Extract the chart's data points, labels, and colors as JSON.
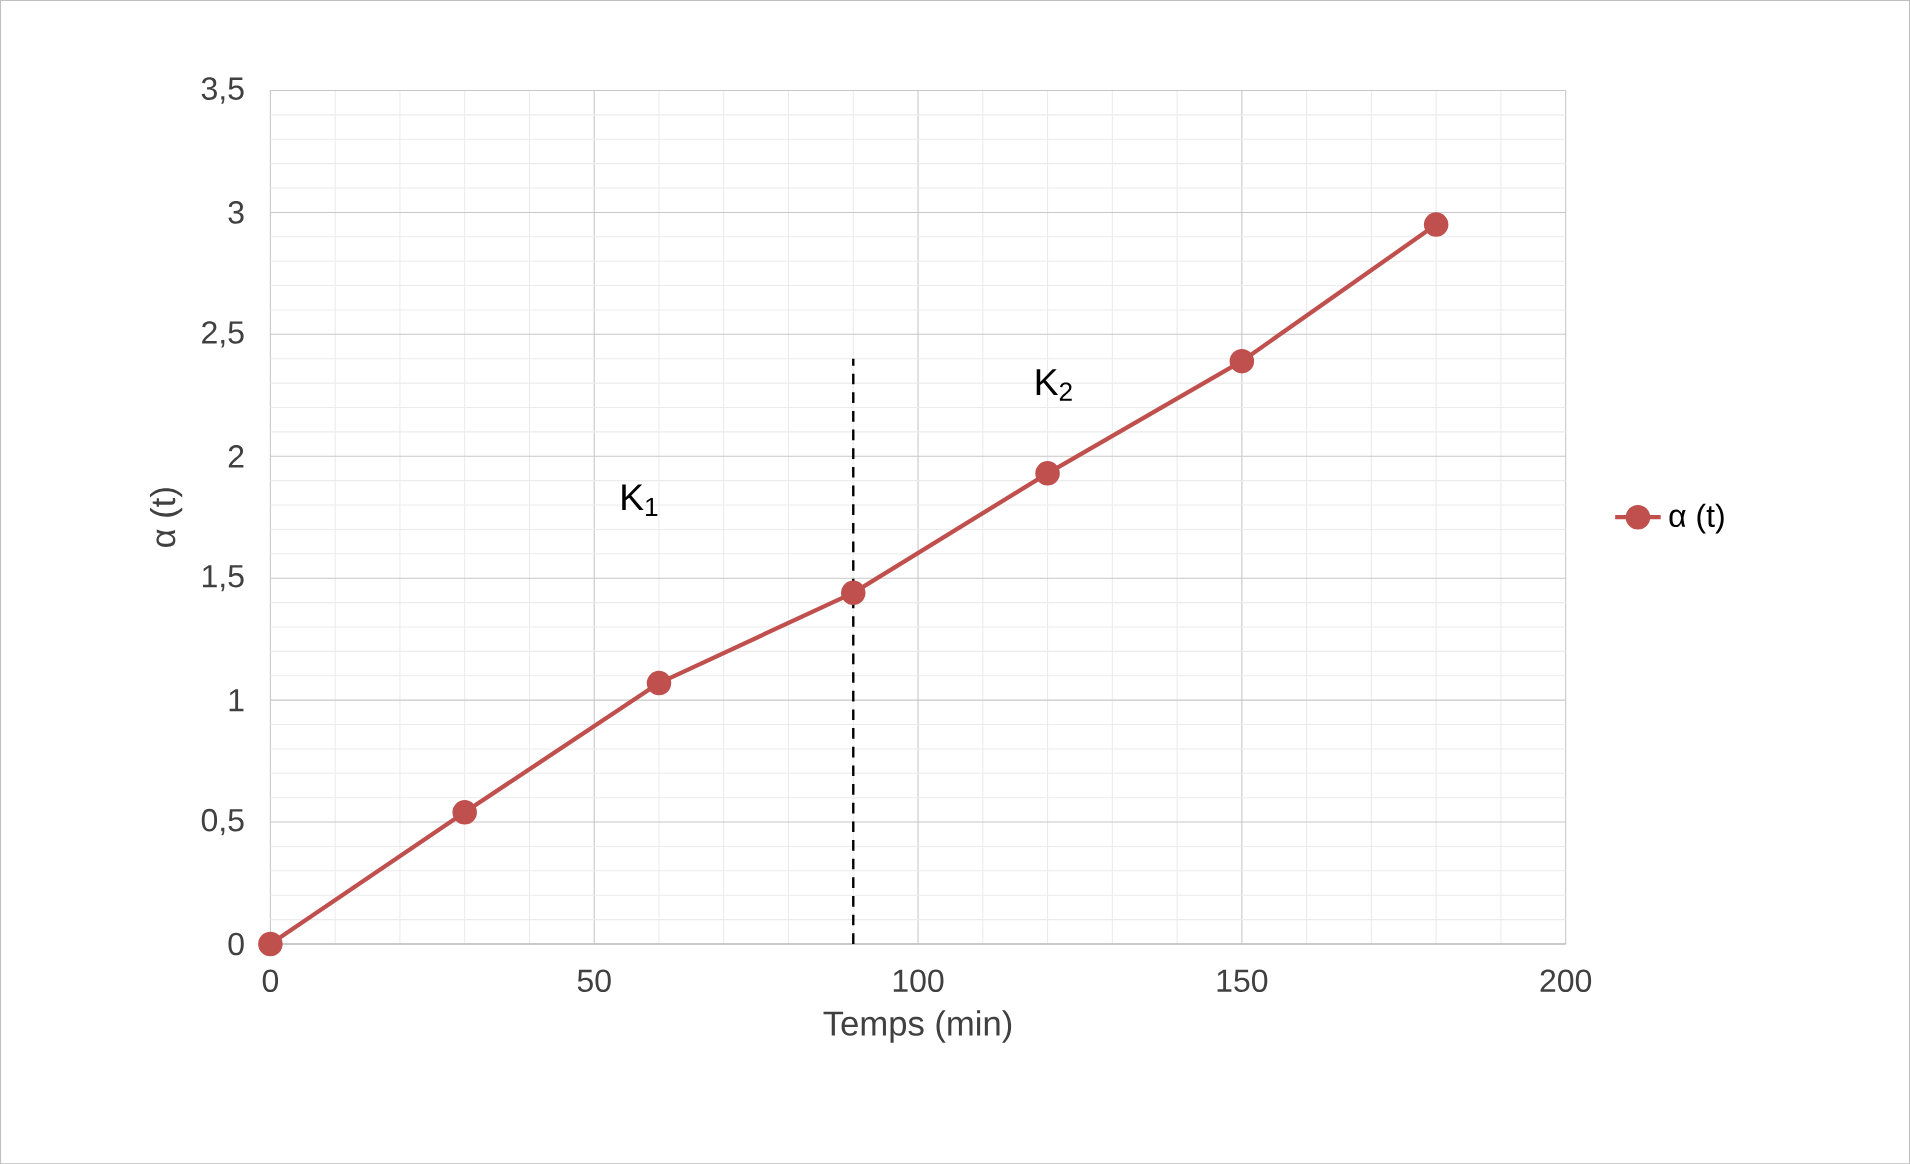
{
  "chart_data": {
    "type": "line",
    "xlabel": "Temps (min)",
    "ylabel": "α (t)",
    "x": [
      0,
      30,
      60,
      90,
      120,
      150,
      180
    ],
    "series": [
      {
        "name": "α (t)",
        "color": "#c0504d",
        "values": [
          0,
          0.54,
          1.07,
          1.44,
          1.93,
          2.39,
          2.95
        ],
        "marker": "circle"
      },
      {
        "type": "line",
        "x": [
          90,
          90
        ],
        "color": "#000000",
        "values": [
          0,
          2.4
        ],
        "line_style": "dashed",
        "marker": "none"
      }
    ],
    "annotations": [
      "K$_{1}$",
      "K$_{2}$"
    ],
    "xlim": [
      0,
      200
    ],
    "xticks": [
      0,
      50,
      100,
      150,
      200
    ],
    "ylim": [
      0,
      3.5
    ],
    "yticks": [
      0,
      {
        "value": 0.5,
        "label": "0,5"
      },
      1,
      {
        "value": 1.5,
        "label": "1,5"
      },
      2,
      {
        "value": 2.5,
        "label": "2,5"
      },
      3,
      {
        "value": 3.5,
        "label": "3,5"
      }
    ],
    "grid": true,
    "legend": "right"
  }
}
